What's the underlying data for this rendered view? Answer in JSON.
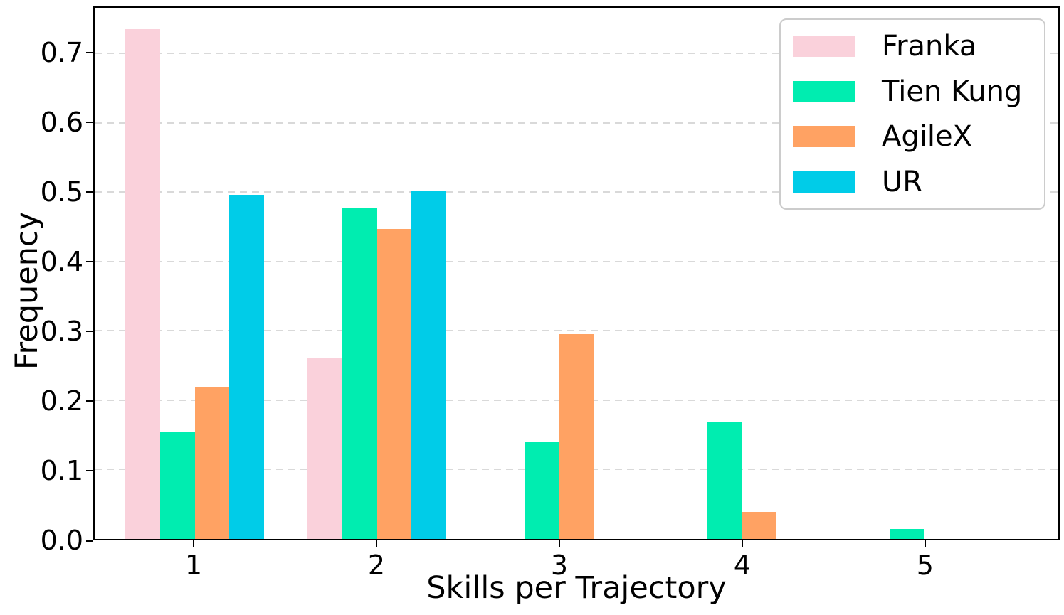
{
  "chart_data": {
    "type": "bar",
    "title": "",
    "xlabel": "Skills per Trajectory",
    "ylabel": "Frequency",
    "categories": [
      "1",
      "2",
      "3",
      "4",
      "5"
    ],
    "series": [
      {
        "name": "Franka",
        "color": "#FAD1DB",
        "values": [
          0.735,
          0.261,
          0,
          0,
          0
        ]
      },
      {
        "name": "Tien Kung",
        "color": "#00EDB0",
        "values": [
          0.155,
          0.478,
          0.141,
          0.169,
          0.014
        ]
      },
      {
        "name": "AgileX",
        "color": "#FFA263",
        "values": [
          0.218,
          0.447,
          0.295,
          0.039,
          0
        ]
      },
      {
        "name": "UR",
        "color": "#00CCE8",
        "values": [
          0.496,
          0.502,
          0,
          0,
          0
        ]
      }
    ],
    "ylim": [
      0,
      0.766
    ],
    "xlim": [
      0.4515,
      5.736
    ],
    "yticks": [
      "0.0",
      "0.1",
      "0.2",
      "0.3",
      "0.4",
      "0.5",
      "0.6",
      "0.7"
    ],
    "ytick_values": [
      0,
      0.1,
      0.2,
      0.3,
      0.4,
      0.5,
      0.6,
      0.7
    ],
    "bar_width_units": 0.19,
    "bar_offsets_units": [
      -0.285,
      -0.095,
      0.095,
      0.285
    ],
    "grid": "horizontal-dashed",
    "legend_position": "upper-right"
  },
  "colors": {
    "background": "#ffffff",
    "axis": "#000000",
    "gridline": "#d9d9d9",
    "legend_border": "#cccccc",
    "text": "#000000"
  }
}
